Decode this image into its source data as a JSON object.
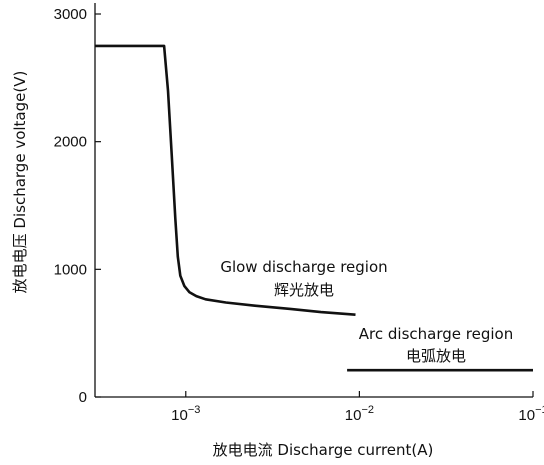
{
  "chart_data": {
    "type": "line",
    "title": "",
    "xlabel": "放电电流  Discharge current(A)",
    "ylabel": "放电电压  Discharge voltage(V)",
    "x_scale": "log",
    "xlim": [
      0.0003,
      0.1
    ],
    "ylim": [
      0,
      3000
    ],
    "x_ticks": [
      {
        "value": 0.001,
        "base": "10",
        "exp": "−3"
      },
      {
        "value": 0.01,
        "base": "10",
        "exp": "−2"
      },
      {
        "value": 0.1,
        "base": "10",
        "exp": "−1"
      }
    ],
    "y_ticks": [
      {
        "value": 0,
        "label": "0"
      },
      {
        "value": 1000,
        "label": "1000"
      },
      {
        "value": 2000,
        "label": "2000"
      },
      {
        "value": 3000,
        "label": "3000"
      }
    ],
    "grid": false,
    "series": [
      {
        "points": [
          [
            0.0003,
            2750
          ],
          [
            0.00075,
            2750
          ],
          [
            0.00079,
            2400
          ],
          [
            0.00083,
            1900
          ],
          [
            0.00087,
            1400
          ],
          [
            0.0009,
            1100
          ],
          [
            0.00093,
            950
          ],
          [
            0.00098,
            870
          ],
          [
            0.00105,
            820
          ],
          [
            0.00115,
            790
          ],
          [
            0.0013,
            765
          ],
          [
            0.0017,
            740
          ],
          [
            0.0025,
            715
          ],
          [
            0.004,
            690
          ],
          [
            0.006,
            665
          ],
          [
            0.0095,
            645
          ]
        ]
      },
      {
        "points": [
          [
            0.0085,
            210
          ],
          [
            0.1,
            210
          ]
        ]
      }
    ],
    "annotations": [
      {
        "lines": [
          "Glow discharge region",
          "辉光放电"
        ]
      },
      {
        "lines": [
          "Arc discharge region",
          "电弧放电"
        ]
      }
    ],
    "colors": {
      "line": "#111111",
      "axis": "#111111",
      "text": "#111111",
      "background": "#ffffff"
    }
  }
}
